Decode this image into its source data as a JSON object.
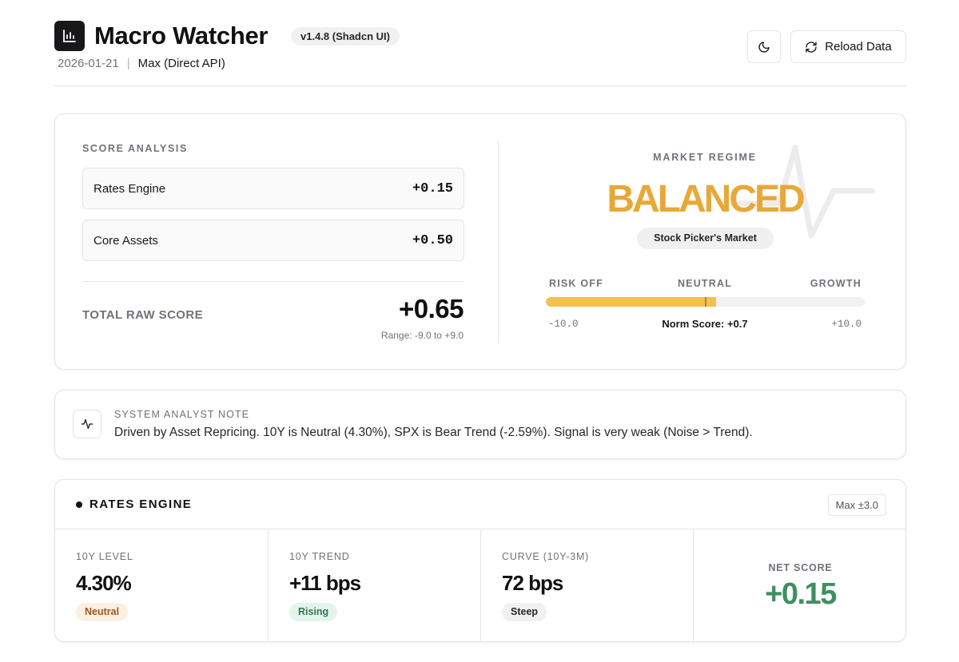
{
  "header": {
    "title": "Macro Watcher",
    "version": "v1.4.8 (Shadcn UI)",
    "date": "2026-01-21",
    "separator": "|",
    "source": "Max (Direct API)",
    "logo_icon": "bar-chart-icon",
    "theme_icon": "moon-icon",
    "reload_icon": "refresh-icon",
    "reload_label": "Reload Data"
  },
  "score_analysis": {
    "label": "SCORE ANALYSIS",
    "rows": [
      {
        "name": "Rates Engine",
        "value": "+0.15"
      },
      {
        "name": "Core Assets",
        "value": "+0.50"
      }
    ],
    "total_label": "TOTAL RAW SCORE",
    "total_value": "+0.65",
    "range": "Range: -9.0 to +9.0"
  },
  "regime": {
    "label": "MARKET REGIME",
    "value": "BALANCED",
    "description": "Stock Picker's Market",
    "scale": {
      "left": "RISK OFF",
      "center": "NEUTRAL",
      "right": "GROWTH",
      "min_label": "-10.0",
      "max_label": "+10.0",
      "min": -10.0,
      "max": 10.0,
      "norm_score": 0.7,
      "norm_label": "Norm Score: +0.7"
    },
    "accent_color": "#e8a838",
    "decor_icon": "pulse-icon"
  },
  "analyst_note": {
    "icon": "activity-icon",
    "label": "SYSTEM ANALYST NOTE",
    "text": "Driven by Asset Repricing. 10Y is Neutral (4.30%), SPX is Bear Trend (-2.59%). Signal is very weak (Noise > Trend)."
  },
  "rates_engine": {
    "title": "RATES ENGINE",
    "max_badge": "Max ±3.0",
    "metrics": [
      {
        "label": "10Y LEVEL",
        "value": "4.30%",
        "tag": "Neutral"
      },
      {
        "label": "10Y TREND",
        "value": "+11 bps",
        "tag": "Rising"
      },
      {
        "label": "CURVE (10Y-3M)",
        "value": "72 bps",
        "tag": "Steep"
      }
    ],
    "net_label": "NET SCORE",
    "net_value": "+0.15",
    "net_color": "#3f8f5e"
  }
}
